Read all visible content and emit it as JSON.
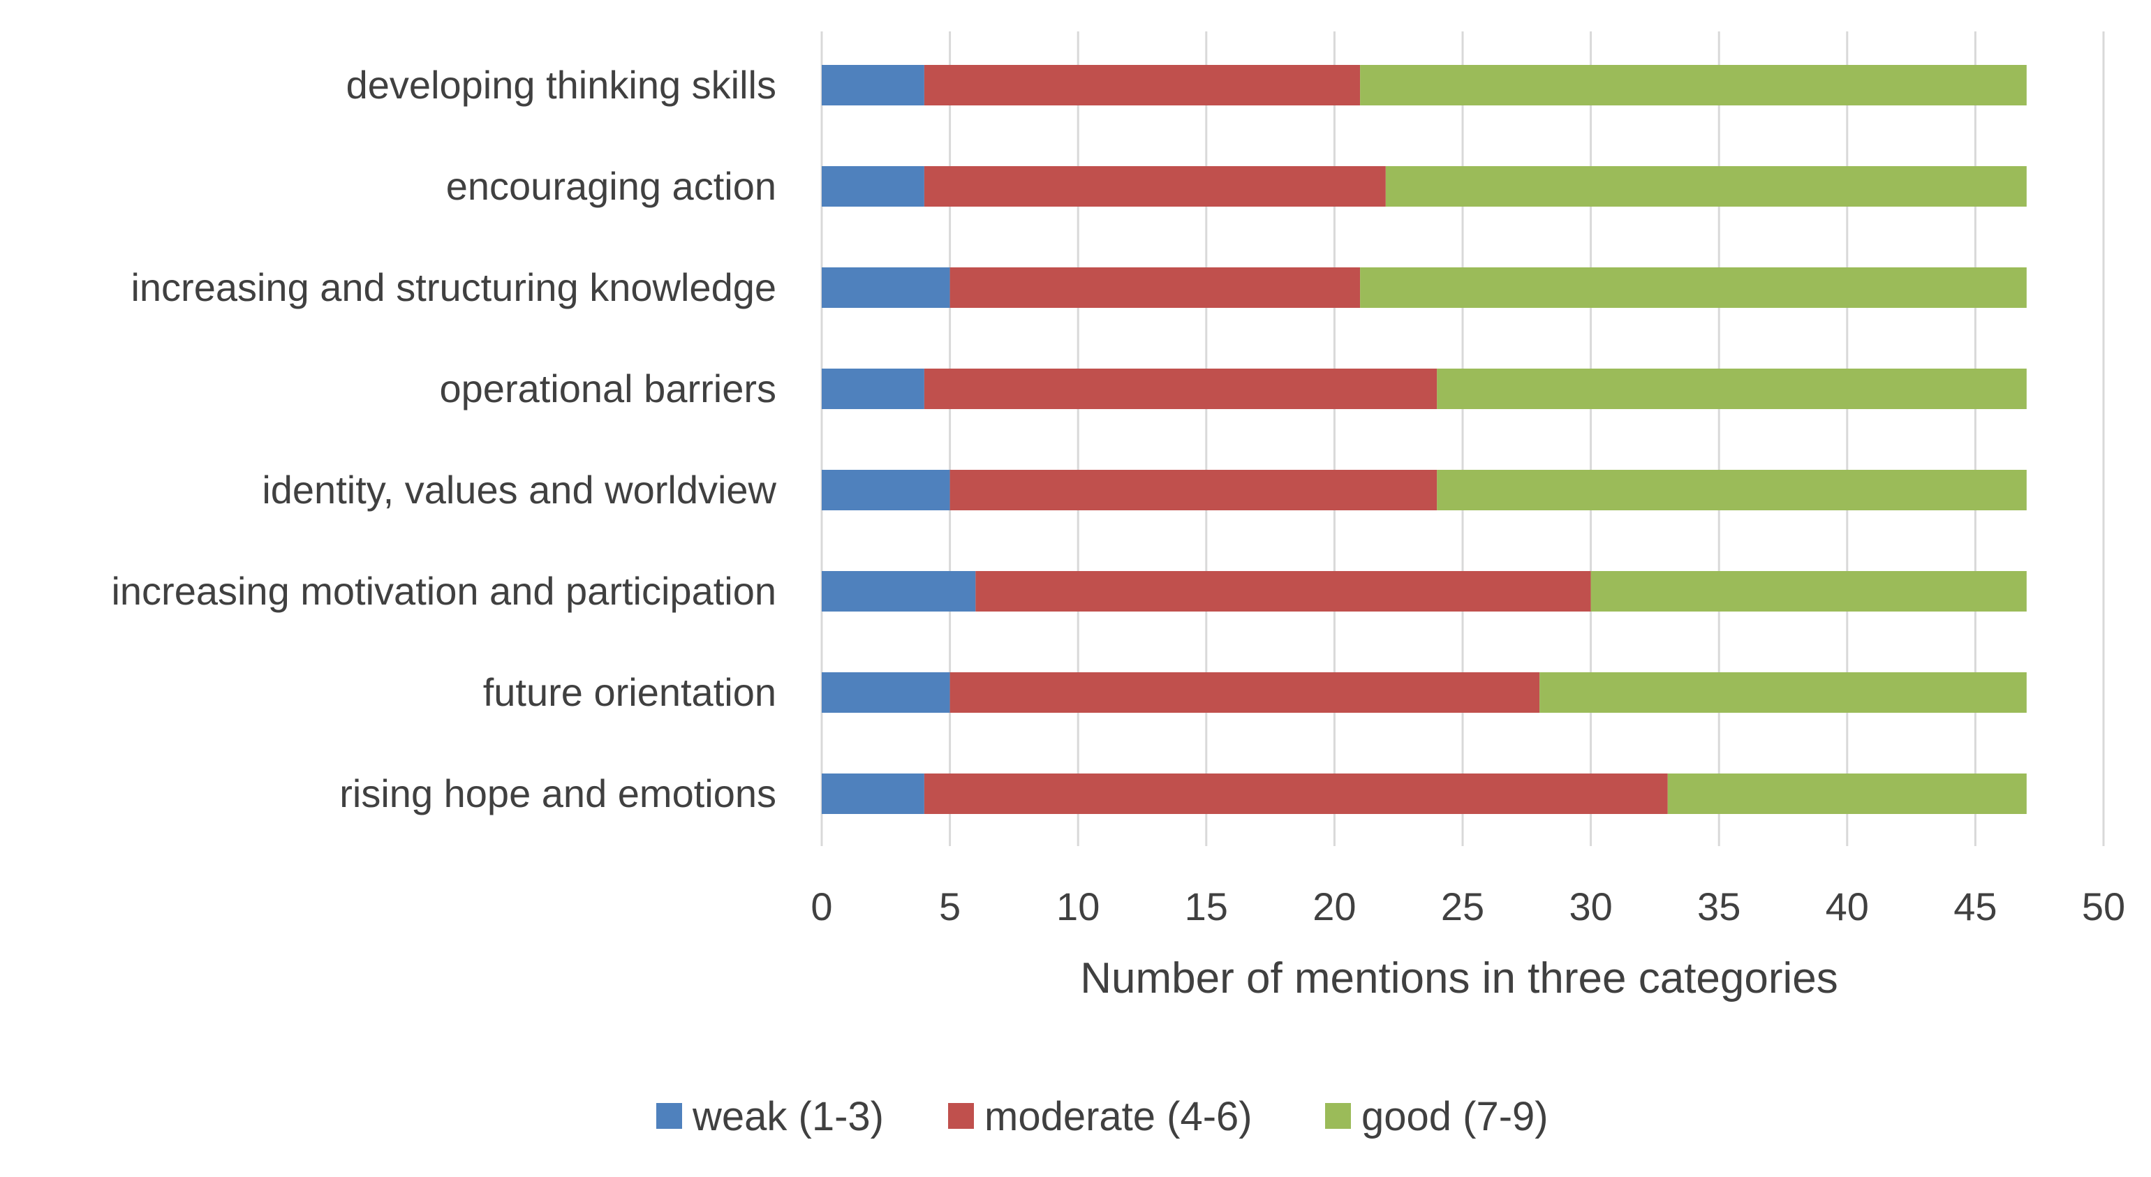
{
  "chart_data": {
    "type": "bar",
    "orientation": "horizontal",
    "stacked": true,
    "title": "",
    "xlabel": "Number of mentions in three categories",
    "ylabel": "",
    "xlim": [
      0,
      50
    ],
    "x_ticks": [
      0,
      5,
      10,
      15,
      20,
      25,
      30,
      35,
      40,
      45,
      50
    ],
    "grid": true,
    "legend_position": "bottom",
    "categories": [
      "developing thinking skills",
      "encouraging action",
      "increasing and structuring knowledge",
      "operational barriers",
      "identity, values and worldview",
      "increasing motivation and participation",
      "future orientation",
      "rising hope and emotions"
    ],
    "series": [
      {
        "name": "weak (1-3)",
        "color": "#4f81bd",
        "values": [
          4,
          4,
          5,
          4,
          5,
          6,
          5,
          4
        ]
      },
      {
        "name": "moderate (4-6)",
        "color": "#c0504d",
        "values": [
          17,
          18,
          16,
          20,
          19,
          24,
          23,
          29
        ]
      },
      {
        "name": "good (7-9)",
        "color": "#9bbb59",
        "values": [
          26,
          25,
          26,
          23,
          23,
          17,
          19,
          14
        ]
      }
    ]
  }
}
